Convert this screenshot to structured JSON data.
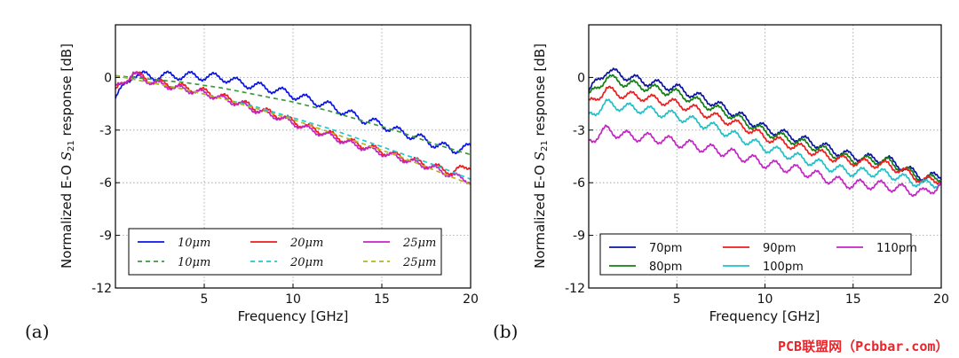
{
  "watermark": "PCB联盟网（Pcbbar.com）",
  "chart_data": [
    {
      "type": "line",
      "panel_label": "(a)",
      "title": "",
      "xlabel": "Frequency [GHz]",
      "ylabel_prefix": "Normalized E-O ",
      "ylabel_sym": "S",
      "ylabel_sub": "21",
      "ylabel_suffix": " response [dB]",
      "xlim": [
        0,
        20
      ],
      "ylim": [
        -12,
        3
      ],
      "xticks": [
        "5",
        "10",
        "15",
        "20"
      ],
      "xtick_values": [
        5,
        10,
        15,
        20
      ],
      "yticks": [
        "0",
        "-3",
        "-6",
        "-9",
        "-12"
      ],
      "ytick_values": [
        0,
        -3,
        -6,
        -9,
        -12
      ],
      "grid": true,
      "legend_placement": "lower-center",
      "legend_columns": 3,
      "series": [
        {
          "name": "10μm",
          "style": "solid",
          "color": "#0a14e6",
          "ripple_amp": 0.22,
          "ripple_period": 1.3,
          "x": [
            0,
            1,
            2,
            3,
            4,
            5,
            6,
            7,
            8,
            9,
            10,
            11,
            12,
            13,
            14,
            15,
            16,
            17,
            18,
            19,
            20
          ],
          "y": [
            -1.2,
            0.2,
            0.05,
            0.1,
            0.1,
            0.05,
            0,
            -0.3,
            -0.5,
            -0.7,
            -1.0,
            -1.3,
            -1.6,
            -2.0,
            -2.4,
            -2.7,
            -3.1,
            -3.4,
            -3.8,
            -4.1,
            -4.0
          ]
        },
        {
          "name": "20μm",
          "style": "solid",
          "color": "#ee1c1c",
          "ripple_amp": 0.18,
          "ripple_period": 1.2,
          "x": [
            0,
            1,
            2,
            3,
            4,
            5,
            6,
            7,
            8,
            9,
            10,
            11,
            12,
            13,
            14,
            15,
            16,
            17,
            18,
            19,
            20
          ],
          "y": [
            -0.8,
            0.25,
            -0.2,
            -0.4,
            -0.6,
            -0.8,
            -1.1,
            -1.4,
            -1.8,
            -2.1,
            -2.5,
            -2.9,
            -3.2,
            -3.6,
            -3.9,
            -4.2,
            -4.5,
            -4.8,
            -5.1,
            -5.4,
            -5.0
          ]
        },
        {
          "name": "25μm",
          "style": "solid",
          "color": "#c425c4",
          "ripple_amp": 0.16,
          "ripple_period": 1.2,
          "x": [
            0,
            1,
            2,
            3,
            4,
            5,
            6,
            7,
            8,
            9,
            10,
            11,
            12,
            13,
            14,
            15,
            16,
            17,
            18,
            19,
            20
          ],
          "y": [
            -0.6,
            0.2,
            -0.25,
            -0.5,
            -0.7,
            -0.9,
            -1.2,
            -1.5,
            -1.9,
            -2.2,
            -2.6,
            -3.0,
            -3.3,
            -3.7,
            -4.0,
            -4.3,
            -4.6,
            -4.9,
            -5.2,
            -5.6,
            -5.9
          ]
        },
        {
          "name": "10μm",
          "style": "dashed",
          "color": "#3c9a3c",
          "ripple_amp": 0,
          "ripple_period": 1,
          "x": [
            0,
            2,
            4,
            6,
            8,
            10,
            12,
            14,
            16,
            18,
            20
          ],
          "y": [
            0.1,
            -0.1,
            -0.3,
            -0.6,
            -1.0,
            -1.4,
            -1.9,
            -2.5,
            -3.1,
            -3.8,
            -4.4
          ]
        },
        {
          "name": "20μm",
          "style": "dashed",
          "color": "#22c8cc",
          "ripple_amp": 0,
          "ripple_period": 1,
          "x": [
            0,
            2,
            4,
            6,
            8,
            10,
            12,
            14,
            16,
            18,
            20
          ],
          "y": [
            0.1,
            -0.3,
            -0.7,
            -1.2,
            -1.7,
            -2.3,
            -2.9,
            -3.6,
            -4.3,
            -5.0,
            -5.8
          ]
        },
        {
          "name": "25μm",
          "style": "dashed",
          "color": "#b4b41e",
          "ripple_amp": 0,
          "ripple_period": 1,
          "x": [
            0,
            2,
            4,
            6,
            8,
            10,
            12,
            14,
            16,
            18,
            20
          ],
          "y": [
            0.1,
            -0.3,
            -0.7,
            -1.2,
            -1.8,
            -2.4,
            -3.1,
            -3.8,
            -4.5,
            -5.3,
            -6.1
          ]
        }
      ],
      "legend_order": [
        0,
        1,
        2,
        3,
        4,
        5
      ]
    },
    {
      "type": "line",
      "panel_label": "(b)",
      "title": "",
      "xlabel": "Frequency [GHz]",
      "ylabel_prefix": "Normalized E-O ",
      "ylabel_sym": "S",
      "ylabel_sub": "21",
      "ylabel_suffix": " response [dB]",
      "xlim": [
        0,
        20
      ],
      "ylim": [
        -12,
        3
      ],
      "xticks": [
        "5",
        "10",
        "15",
        "20"
      ],
      "xtick_values": [
        5,
        10,
        15,
        20
      ],
      "yticks": [
        "0",
        "-3",
        "-6",
        "-9",
        "-12"
      ],
      "ytick_values": [
        0,
        -3,
        -6,
        -9,
        -12
      ],
      "grid": true,
      "legend_placement": "lower-center",
      "legend_columns": 3,
      "series": [
        {
          "name": "70pm",
          "style": "solid",
          "color": "#0a14a0",
          "ripple_amp": 0.22,
          "ripple_period": 1.2,
          "x": [
            0,
            1,
            2,
            3,
            4,
            5,
            6,
            7,
            8,
            9,
            10,
            11,
            12,
            13,
            14,
            15,
            16,
            17,
            18,
            19,
            20
          ],
          "y": [
            -0.8,
            0.4,
            0.1,
            -0.2,
            -0.4,
            -0.6,
            -1.0,
            -1.4,
            -1.9,
            -2.4,
            -2.9,
            -3.2,
            -3.5,
            -3.8,
            -4.2,
            -4.5,
            -4.6,
            -4.7,
            -5.2,
            -5.7,
            -5.6
          ]
        },
        {
          "name": "80pm",
          "style": "solid",
          "color": "#137f13",
          "ripple_amp": 0.22,
          "ripple_period": 1.2,
          "x": [
            0,
            1,
            2,
            3,
            4,
            5,
            6,
            7,
            8,
            9,
            10,
            11,
            12,
            13,
            14,
            15,
            16,
            17,
            18,
            19,
            20
          ],
          "y": [
            -1.1,
            0.0,
            -0.3,
            -0.5,
            -0.7,
            -0.9,
            -1.3,
            -1.7,
            -2.1,
            -2.6,
            -3.1,
            -3.4,
            -3.7,
            -4.0,
            -4.4,
            -4.7,
            -4.7,
            -4.8,
            -5.3,
            -5.8,
            -5.7
          ]
        },
        {
          "name": "90pm",
          "style": "solid",
          "color": "#ee1c1c",
          "ripple_amp": 0.22,
          "ripple_period": 1.2,
          "x": [
            0,
            1,
            2,
            3,
            4,
            5,
            6,
            7,
            8,
            9,
            10,
            11,
            12,
            13,
            14,
            15,
            16,
            17,
            18,
            19,
            20
          ],
          "y": [
            -1.5,
            -0.7,
            -1.0,
            -1.1,
            -1.3,
            -1.5,
            -1.8,
            -2.2,
            -2.5,
            -2.9,
            -3.4,
            -3.7,
            -4.0,
            -4.3,
            -4.6,
            -4.8,
            -4.9,
            -5.0,
            -5.4,
            -5.9,
            -5.8
          ]
        },
        {
          "name": "100pm",
          "style": "solid",
          "color": "#22c0c8",
          "ripple_amp": 0.24,
          "ripple_period": 1.2,
          "x": [
            0,
            1,
            2,
            3,
            4,
            5,
            6,
            7,
            8,
            9,
            10,
            11,
            12,
            13,
            14,
            15,
            16,
            17,
            18,
            19,
            20
          ],
          "y": [
            -2.2,
            -1.5,
            -1.7,
            -1.8,
            -2.0,
            -2.2,
            -2.5,
            -2.8,
            -3.2,
            -3.6,
            -4.0,
            -4.3,
            -4.6,
            -4.9,
            -5.2,
            -5.4,
            -5.4,
            -5.5,
            -5.8,
            -6.1,
            -6.0
          ]
        },
        {
          "name": "110pm",
          "style": "solid",
          "color": "#c425c4",
          "ripple_amp": 0.26,
          "ripple_period": 1.2,
          "x": [
            0,
            1,
            2,
            3,
            4,
            5,
            6,
            7,
            8,
            9,
            10,
            11,
            12,
            13,
            14,
            15,
            16,
            17,
            18,
            19,
            20
          ],
          "y": [
            -3.6,
            -3.0,
            -3.3,
            -3.4,
            -3.5,
            -3.7,
            -3.9,
            -4.1,
            -4.3,
            -4.6,
            -4.9,
            -5.1,
            -5.3,
            -5.6,
            -5.9,
            -6.1,
            -6.1,
            -6.2,
            -6.4,
            -6.6,
            -6.1
          ]
        }
      ],
      "legend_order": [
        0,
        2,
        4,
        1,
        3
      ]
    }
  ]
}
